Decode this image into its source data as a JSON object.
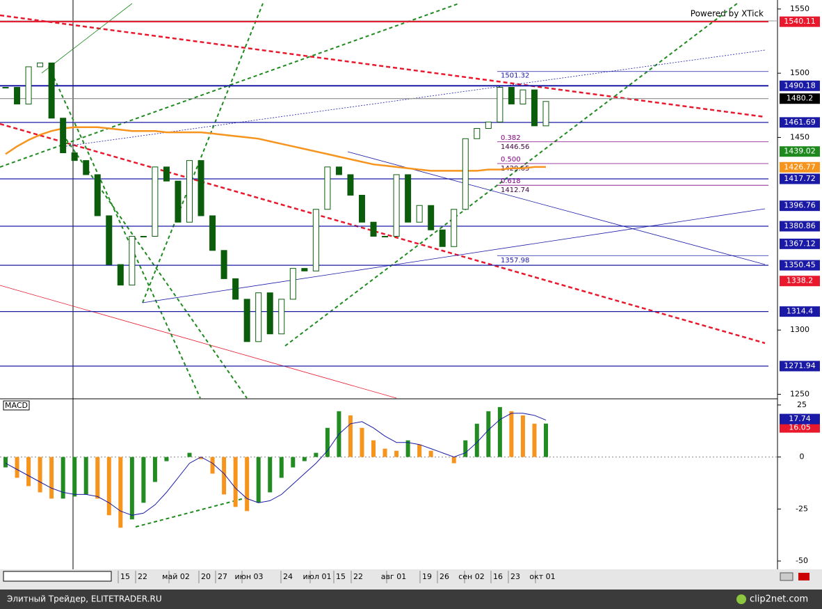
{
  "chart_data": {
    "type": "candlestick",
    "watermark": "Powered by XTick",
    "values": [
      1489,
      1476,
      1505,
      1508,
      1465,
      1438,
      1432,
      1421,
      1389,
      1351,
      1335,
      1373,
      1373,
      1427,
      1416,
      1384,
      1432,
      1389,
      1362,
      1340,
      1324,
      1291,
      1329,
      1297,
      1324,
      1348,
      1346,
      1394,
      1427,
      1421,
      1405,
      1384,
      1373,
      1373,
      1421,
      1384,
      1397,
      1378,
      1365,
      1394,
      1449,
      1457,
      1462,
      1489,
      1476,
      1487,
      1459,
      1478
    ],
    "ma": {
      "color": "#f7941d",
      "values": [
        1437,
        1443,
        1448,
        1452,
        1455,
        1457,
        1458,
        1458,
        1458,
        1457,
        1456,
        1455,
        1455,
        1455,
        1454,
        1454,
        1454,
        1454,
        1453,
        1452,
        1451,
        1450,
        1449,
        1447,
        1445,
        1443,
        1441,
        1439,
        1437,
        1435,
        1433,
        1431,
        1429,
        1428,
        1427,
        1426,
        1425,
        1424,
        1424,
        1424,
        1424,
        1424,
        1425,
        1425,
        1426,
        1426,
        1427,
        1427
      ]
    },
    "ylim": [
      1247,
      1557
    ],
    "yticks": [
      1550,
      1500,
      1450,
      1300,
      1250
    ],
    "levels": [
      {
        "value": 1540.11,
        "color": "#e8192c",
        "line": true
      },
      {
        "value": 1490.18,
        "color": "#1a1aa6",
        "line": true
      },
      {
        "value": 1480.2,
        "color": "#000000",
        "line": true
      },
      {
        "value": 1461.69,
        "color": "#1a1aa6",
        "line": true
      },
      {
        "value": 1439.02,
        "color": "#1e8a1e",
        "line": false
      },
      {
        "value": 1426.77,
        "color": "#f7941d",
        "line": false
      },
      {
        "value": 1417.72,
        "color": "#1a1aa6",
        "line": true
      },
      {
        "value": 1396.76,
        "color": "#1a1aa6",
        "line": false
      },
      {
        "value": 1380.86,
        "color": "#1a1aa6",
        "line": true
      },
      {
        "value": 1367.12,
        "color": "#1a1aa6",
        "line": false
      },
      {
        "value": 1350.45,
        "color": "#1a1aa6",
        "line": true
      },
      {
        "value": 1338.2,
        "color": "#e8192c",
        "line": false
      },
      {
        "value": 1314.4,
        "color": "#1a1aa6",
        "line": true
      },
      {
        "value": 1271.94,
        "color": "#1a1aa6",
        "line": true
      }
    ],
    "fib": [
      {
        "value": 1501.32
      },
      {
        "ratio": "0.382",
        "value": 1446.56
      },
      {
        "ratio": "0.500",
        "value": 1429.65
      },
      {
        "ratio": "0.618",
        "value": 1412.74
      },
      {
        "value": 1357.98
      }
    ],
    "macd": {
      "title": "MACD",
      "histogram": [
        -5,
        -10,
        -14,
        -17,
        -20,
        -20,
        -19,
        -18,
        -20,
        -28,
        -34,
        -30,
        -22,
        -12,
        -2,
        0,
        2,
        -1,
        -8,
        -18,
        -24,
        -26,
        -22,
        -17,
        -10,
        -5,
        -2,
        2,
        14,
        22,
        20,
        14,
        8,
        4,
        3,
        8,
        6,
        3,
        0,
        -3,
        8,
        16,
        22,
        24,
        22,
        20,
        16,
        16.05
      ],
      "signal": [
        -3,
        -6,
        -9,
        -12,
        -15,
        -17,
        -18,
        -18,
        -19,
        -22,
        -26,
        -28,
        -27,
        -23,
        -17,
        -10,
        -3,
        0,
        -3,
        -8,
        -15,
        -20,
        -22,
        -21,
        -18,
        -13,
        -8,
        -3,
        3,
        11,
        16,
        17,
        14,
        10,
        7,
        7,
        6,
        4,
        2,
        0,
        2,
        7,
        13,
        18,
        21,
        21,
        20,
        17.74
      ],
      "ylim": [
        -54,
        27.3
      ],
      "yticks": [
        25,
        0,
        -25,
        -50
      ]
    },
    "x_labels": [
      "15",
      "22",
      "май 02",
      "20",
      "27",
      "июн 03",
      "24",
      "июл 01",
      "15",
      "22",
      "авг 01",
      "19",
      "26",
      "сен 02",
      "16",
      "23",
      "окт 01"
    ],
    "footer": "Элитный Трейдер, ELITETRADER.RU",
    "brand": "clip2net.com"
  }
}
